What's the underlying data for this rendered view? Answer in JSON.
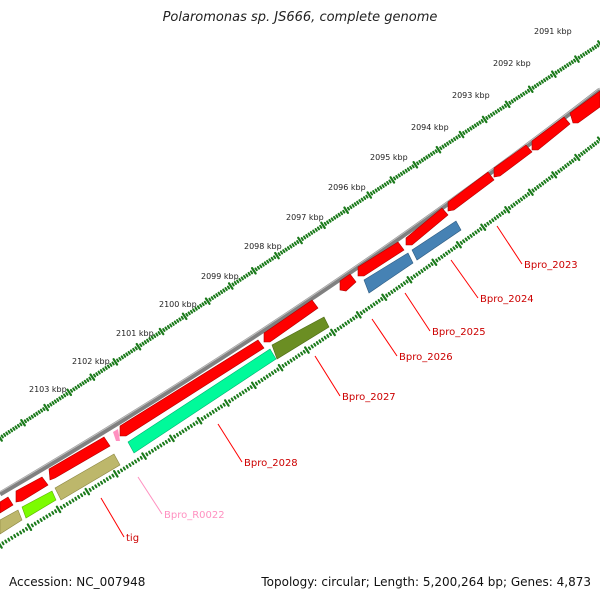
{
  "title": "Polaromonas sp. JS666, complete genome",
  "accession": "Accession: NC_007948",
  "topology": "Topology: circular; Length: 5,200,264 bp; Genes: 4,873",
  "colors": {
    "backbone": "#808080",
    "tick": "#1b7a1b",
    "cds_red": "#ff0000",
    "blue": "#4682b4",
    "olive_dark": "#6b8e23",
    "spring_green": "#00fa9a",
    "khaki": "#bdb76b",
    "lawn_green": "#7cfc00",
    "pink": "#ff90c0",
    "label_red": "#cc0000"
  },
  "scale": {
    "labels": [
      "2091 kbp",
      "2092 kbp",
      "2093 kbp",
      "2094 kbp",
      "2095 kbp",
      "2096 kbp",
      "2097 kbp",
      "2098 kbp",
      "2099 kbp",
      "2100 kbp",
      "2101 kbp",
      "2102 kbp",
      "2103 kbp"
    ]
  },
  "features": [
    {
      "name": "Bpro_2023",
      "color": "label_red"
    },
    {
      "name": "Bpro_2024",
      "color": "label_red"
    },
    {
      "name": "Bpro_2025",
      "color": "label_red"
    },
    {
      "name": "Bpro_2026",
      "color": "label_red"
    },
    {
      "name": "Bpro_2027",
      "color": "label_red"
    },
    {
      "name": "Bpro_2028",
      "color": "label_red"
    },
    {
      "name": "Bpro_R0022",
      "color": "pink"
    },
    {
      "name": "tig",
      "color": "label_red"
    }
  ]
}
